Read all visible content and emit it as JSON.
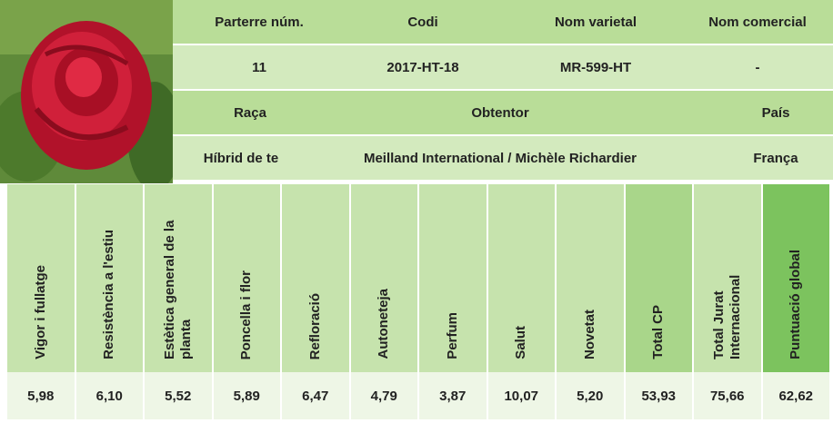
{
  "header_table": {
    "rows": [
      [
        "Parterre núm.",
        "Codi",
        "Nom varietal",
        "Nom comercial"
      ],
      [
        "11",
        "2017-HT-18",
        "MR-599-HT",
        "-"
      ],
      [
        "Raça",
        "Obtentor",
        "País"
      ],
      [
        "Híbrid de te",
        "Meilland International / Michèle Richardier",
        "França"
      ]
    ]
  },
  "scores_table": {
    "headers": [
      "Vigor i fullatge",
      "Resistència a l'estiu",
      "Estètica general de la planta",
      "Poncella i flor",
      "Refloració",
      "Autoneteja",
      "Perfum",
      "Salut",
      "Novetat",
      "Total CP",
      "Total Jurat Internacional",
      "Puntuació global"
    ],
    "values": [
      "5,98",
      "6,10",
      "5,52",
      "5,89",
      "6,47",
      "4,79",
      "3,87",
      "10,07",
      "5,20",
      "53,93",
      "75,66",
      "62,62"
    ]
  }
}
